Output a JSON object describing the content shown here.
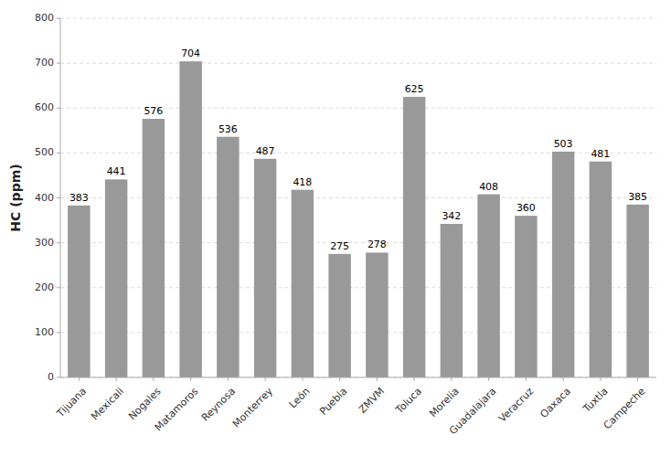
{
  "chart_data": {
    "type": "bar",
    "categories": [
      "Tijuana",
      "Mexicali",
      "Nogales",
      "Matamoros",
      "Reynosa",
      "Monterrey",
      "León",
      "Puebla",
      "ZMVM",
      "Toluca",
      "Morelia",
      "Guadalajara",
      "Veracruz",
      "Oaxaca",
      "Tuxtla",
      "Campeche"
    ],
    "values": [
      383,
      441,
      576,
      704,
      536,
      487,
      418,
      275,
      278,
      625,
      342,
      408,
      360,
      503,
      481,
      385
    ],
    "color": "#999999",
    "ylabel": "HC (ppm)",
    "ylim": [
      0,
      800
    ],
    "yticks": [
      0,
      100,
      200,
      300,
      400,
      500,
      600,
      700,
      800
    ],
    "grid": true,
    "data_labels": true
  }
}
